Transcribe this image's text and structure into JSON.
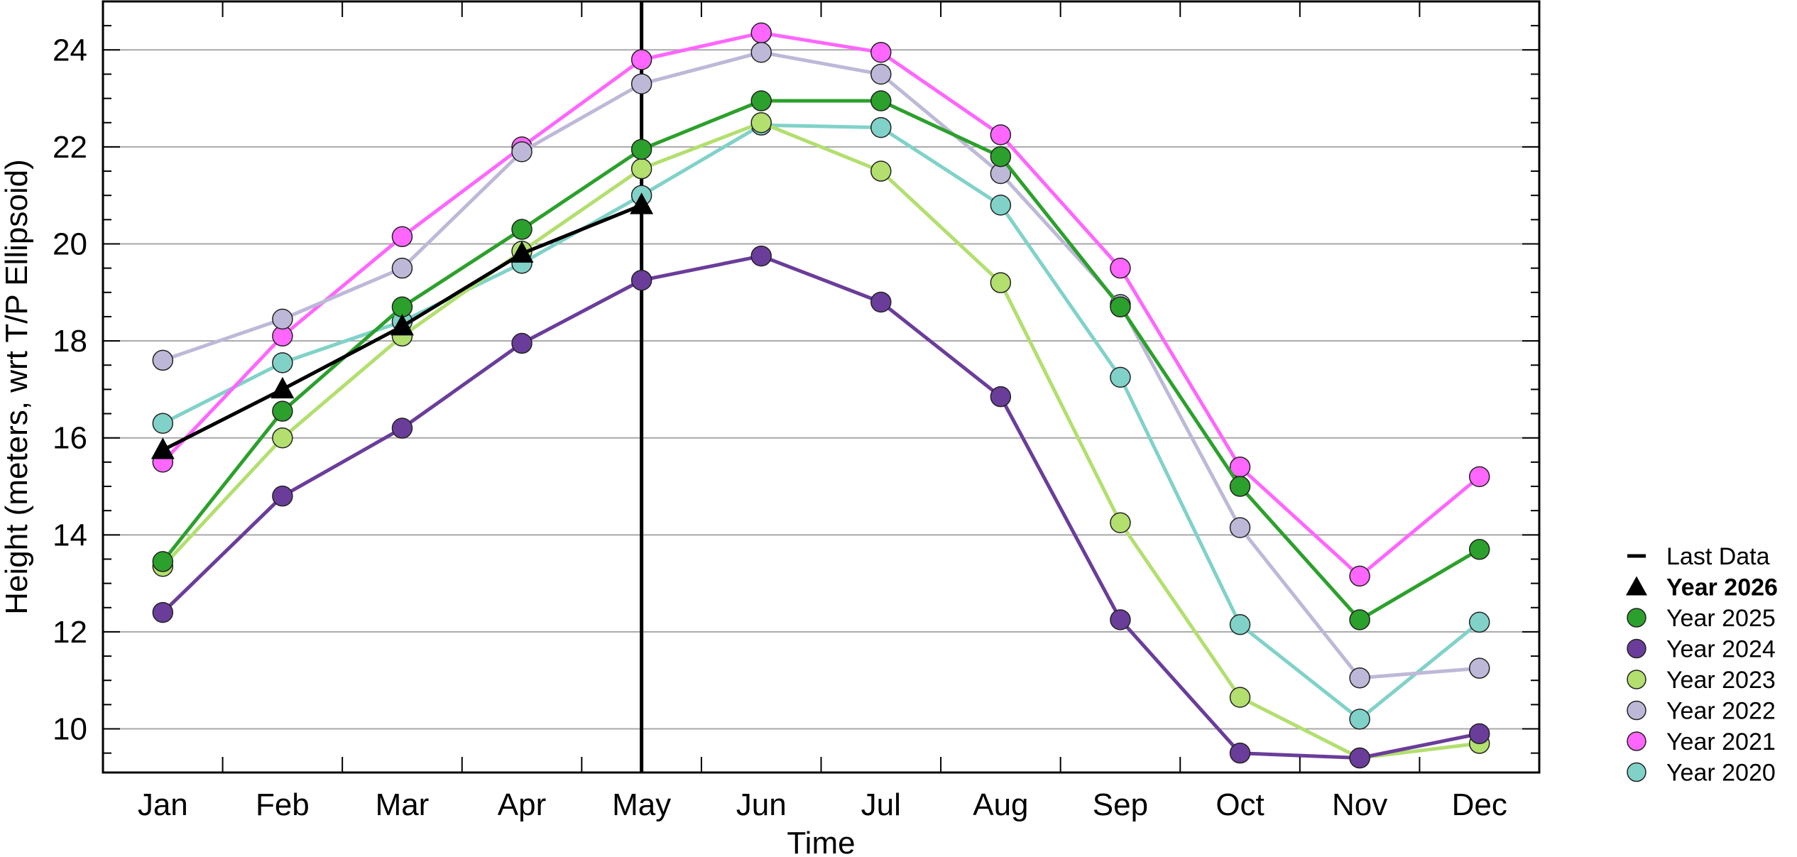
{
  "chart_data": {
    "type": "line",
    "title": "",
    "xlabel": "Time",
    "ylabel": "Height (meters, wrt T/P Ellipsoid)",
    "categories": [
      "Jan",
      "Feb",
      "Mar",
      "Apr",
      "May",
      "Jun",
      "Jul",
      "Aug",
      "Sep",
      "Oct",
      "Nov",
      "Dec"
    ],
    "ylim": [
      9.1,
      25.0
    ],
    "yticks": [
      10,
      12,
      14,
      16,
      18,
      20,
      22,
      24
    ],
    "grid": "horizontal",
    "legend_position": "right",
    "last_data_category": "May",
    "last_data_label": "Last Data",
    "series": [
      {
        "name": "Year 2020",
        "color": "#80d2c8",
        "marker": "circle",
        "values": [
          16.3,
          17.55,
          18.4,
          19.6,
          21.0,
          22.45,
          22.4,
          20.8,
          17.25,
          12.15,
          10.2,
          12.2
        ]
      },
      {
        "name": "Year 2021",
        "color": "#ff66ff",
        "marker": "circle",
        "values": [
          15.5,
          18.1,
          20.15,
          22.0,
          23.8,
          24.35,
          23.95,
          22.25,
          19.5,
          15.4,
          13.15,
          15.2
        ]
      },
      {
        "name": "Year 2022",
        "color": "#beb8d8",
        "marker": "circle",
        "values": [
          17.6,
          18.45,
          19.5,
          21.9,
          23.3,
          23.95,
          23.5,
          21.45,
          18.75,
          14.15,
          11.05,
          11.25
        ]
      },
      {
        "name": "Year 2023",
        "color": "#b2df6e",
        "marker": "circle",
        "values": [
          13.35,
          16.0,
          18.1,
          19.85,
          21.55,
          22.5,
          21.5,
          19.2,
          14.25,
          10.65,
          9.4,
          9.7
        ]
      },
      {
        "name": "Year 2024",
        "color": "#6a3d9a",
        "marker": "circle",
        "values": [
          12.4,
          14.8,
          16.2,
          17.95,
          19.25,
          19.75,
          18.8,
          16.85,
          12.25,
          9.5,
          9.4,
          9.9
        ]
      },
      {
        "name": "Year 2025",
        "color": "#2ca02c",
        "marker": "circle",
        "values": [
          13.45,
          16.55,
          18.7,
          20.3,
          21.95,
          22.95,
          22.95,
          21.8,
          18.7,
          15.0,
          12.25,
          13.7
        ]
      },
      {
        "name": "Year 2026",
        "color": "#000000",
        "marker": "triangle",
        "bold": true,
        "values": [
          15.75,
          17.0,
          18.3,
          19.8,
          20.8,
          null,
          null,
          null,
          null,
          null,
          null,
          null
        ]
      }
    ],
    "legend_order": [
      "Last Data",
      "Year 2026",
      "Year 2025",
      "Year 2024",
      "Year 2023",
      "Year 2022",
      "Year 2021",
      "Year 2020"
    ]
  }
}
